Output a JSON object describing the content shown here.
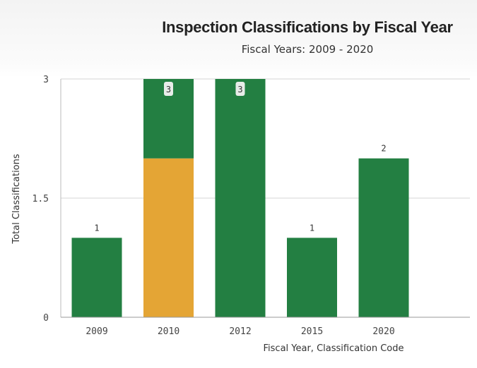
{
  "chart_data": {
    "type": "bar",
    "stacked": true,
    "title": "Inspection Classifications by Fiscal Year",
    "subtitle": "Fiscal Years: 2009 - 2020",
    "xlabel": "Fiscal Year, Classification Code",
    "ylabel": "Total Classifications",
    "ylim": [
      0,
      3
    ],
    "yticks": [
      0,
      1.5,
      3
    ],
    "ytick_labels": [
      "0",
      "1.5",
      "3"
    ],
    "grid": true,
    "categories": [
      "2009",
      "2010",
      "2012",
      "2015",
      "2020"
    ],
    "series": [
      {
        "color": "#e4a535",
        "values": [
          0,
          2,
          0,
          0,
          0
        ]
      },
      {
        "color": "#237f42",
        "values": [
          1,
          1,
          3,
          1,
          2
        ]
      }
    ],
    "totals": [
      1,
      3,
      3,
      1,
      2
    ],
    "total_labels": [
      "1",
      "3",
      "3",
      "1",
      "2"
    ]
  }
}
